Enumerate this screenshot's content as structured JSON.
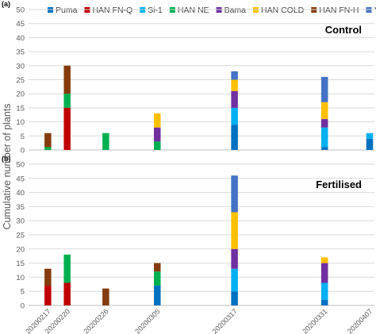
{
  "chart_data": {
    "type": "bar",
    "stacked": true,
    "ylabel": "Cumulative number of plants",
    "ylim": [
      0,
      50
    ],
    "yticks": [
      0,
      5,
      10,
      15,
      20,
      25,
      30,
      35,
      40,
      45,
      50
    ],
    "grid": true,
    "legend_position": "top",
    "date_axis": {
      "start": "2020-02-14",
      "end": "2020-04-07",
      "tick_dates": [
        "2020-02-17",
        "2020-02-20",
        "2020-02-26",
        "2020-03-05",
        "2020-03-17",
        "2020-03-31",
        "2020-04-07"
      ],
      "tick_labels": [
        "20200217",
        "20200220",
        "20200226",
        "20200305",
        "20200317",
        "20200331",
        "> 20200407"
      ]
    },
    "series_names": [
      "Puma",
      "HAN FN-Q",
      "Si-1",
      "HAN NE",
      "Bama",
      "HAN COLD",
      "HAN FN-H",
      "Yumai"
    ],
    "colors": {
      "Puma": "#0070c0",
      "HAN FN-Q": "#c00000",
      "Si-1": "#00b0f0",
      "HAN NE": "#00b050",
      "Bama": "#7030a0",
      "HAN COLD": "#ffc000",
      "HAN FN-H": "#843c0c",
      "Yumai": "#4472c4"
    },
    "panels": [
      {
        "letter": "(a)",
        "title": "Control",
        "bars": [
          {
            "date": "2020-02-17",
            "values": {
              "HAN NE": 1,
              "HAN FN-H": 5
            }
          },
          {
            "date": "2020-02-20",
            "values": {
              "HAN FN-Q": 15,
              "HAN NE": 5,
              "HAN FN-H": 10
            }
          },
          {
            "date": "2020-02-26",
            "values": {
              "HAN NE": 6
            }
          },
          {
            "date": "2020-03-05",
            "values": {
              "HAN NE": 3,
              "Bama": 5,
              "HAN COLD": 5
            }
          },
          {
            "date": "2020-03-17",
            "values": {
              "Puma": 9,
              "Si-1": 6,
              "Bama": 6,
              "HAN COLD": 4,
              "Yumai": 3
            }
          },
          {
            "date": "2020-03-31",
            "values": {
              "Puma": 1,
              "Si-1": 7,
              "Bama": 3,
              "HAN COLD": 6,
              "Yumai": 9
            }
          },
          {
            "date": "2020-04-07",
            "values": {
              "Puma": 4,
              "Si-1": 2
            }
          }
        ]
      },
      {
        "letter": "(b)",
        "title": "Fertilised",
        "bars": [
          {
            "date": "2020-02-17",
            "values": {
              "HAN FN-Q": 7,
              "HAN FN-H": 6
            }
          },
          {
            "date": "2020-02-20",
            "values": {
              "HAN FN-Q": 8,
              "HAN NE": 10
            }
          },
          {
            "date": "2020-02-26",
            "values": {
              "HAN FN-H": 6
            }
          },
          {
            "date": "2020-03-05",
            "values": {
              "Puma": 7,
              "HAN NE": 5,
              "HAN FN-H": 3
            }
          },
          {
            "date": "2020-03-17",
            "values": {
              "Puma": 5,
              "Si-1": 8,
              "Bama": 7,
              "HAN COLD": 13,
              "Yumai": 13
            }
          },
          {
            "date": "2020-03-31",
            "values": {
              "Puma": 2,
              "Si-1": 6,
              "Bama": 7,
              "HAN COLD": 2
            }
          }
        ]
      }
    ]
  }
}
